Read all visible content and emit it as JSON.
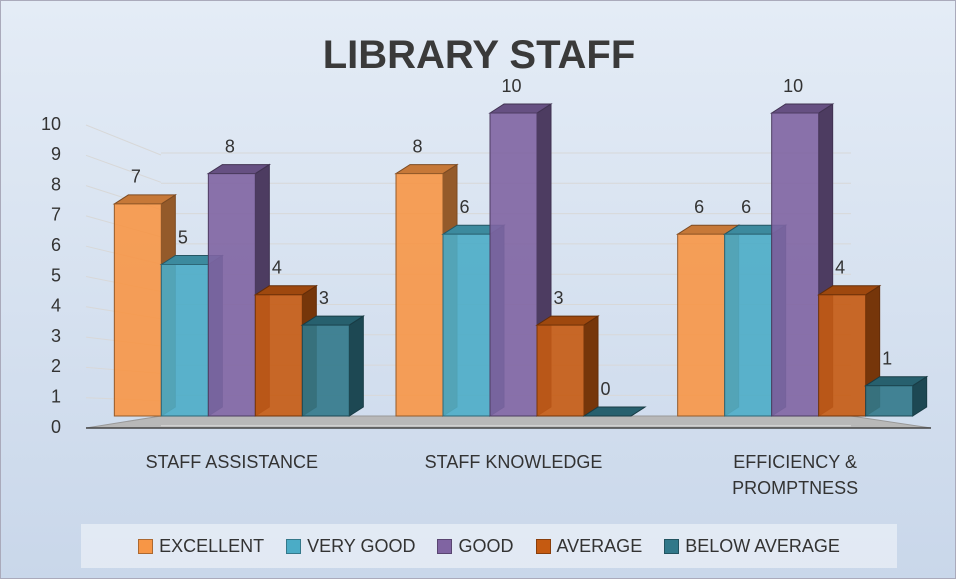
{
  "chart_data": {
    "type": "bar3d",
    "title": "LIBRARY STAFF",
    "categories": [
      "STAFF ASSISTANCE",
      "STAFF KNOWLEDGE",
      "EFFICIENCY & PROMPTNESS"
    ],
    "series": [
      {
        "name": "EXCELLENT",
        "color": "#f79646",
        "values": [
          7,
          8,
          6
        ]
      },
      {
        "name": "VERY GOOD",
        "color": "#4bacc6",
        "values": [
          5,
          6,
          6
        ]
      },
      {
        "name": "GOOD",
        "color": "#8064a2",
        "values": [
          8,
          10,
          10
        ]
      },
      {
        "name": "AVERAGE",
        "color": "#c55a11",
        "values": [
          4,
          3,
          4
        ]
      },
      {
        "name": "BELOW AVERAGE",
        "color": "#31788a",
        "values": [
          3,
          0,
          1
        ]
      }
    ],
    "ylim": [
      0,
      10
    ],
    "yticks": [
      0,
      1,
      2,
      3,
      4,
      5,
      6,
      7,
      8,
      9,
      10
    ],
    "grid": true,
    "legend": "bottom"
  }
}
